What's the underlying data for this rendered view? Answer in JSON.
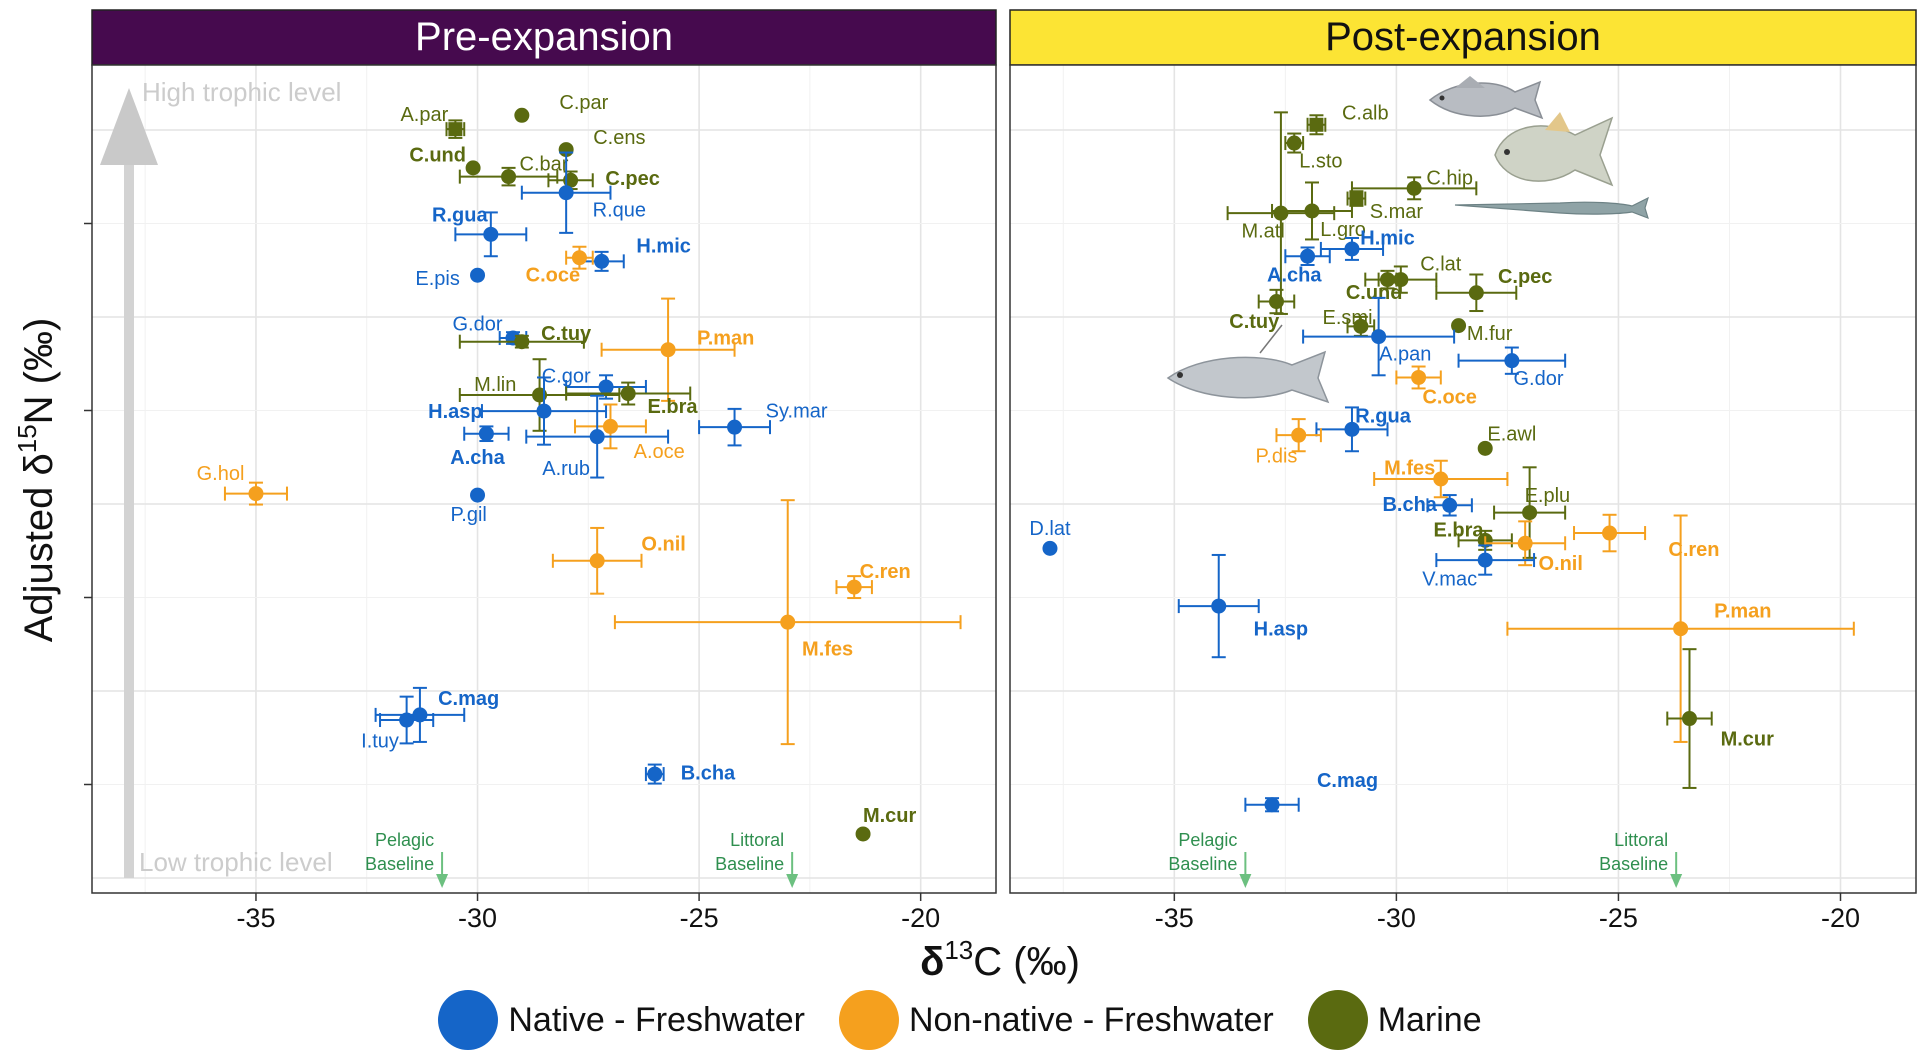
{
  "colors": {
    "native": "#1565c8",
    "nonnative": "#f5a01e",
    "marine": "#5a6a10",
    "pre_strip": "#460a4e",
    "post_strip": "#fce434",
    "baseline": "#6cc080"
  },
  "legend": [
    {
      "key": "native",
      "label": "Native - Freshwater"
    },
    {
      "key": "nonnative",
      "label": "Non-native - Freshwater"
    },
    {
      "key": "marine",
      "label": "Marine"
    }
  ],
  "axes": {
    "xlabel_prefix": "δ",
    "xlabel_sup": "13",
    "xlabel_suffix": "C (‰)",
    "ylabel_prefix": "Adjusted δ",
    "ylabel_sup": "15",
    "ylabel_suffix": "N (‰)",
    "x_ticks": [
      -35,
      -30,
      -25,
      -20
    ]
  },
  "annotations": {
    "high_trophic": "High trophic level",
    "low_trophic": "Low trophic level",
    "pelagic": "Pelagic",
    "littoral": "Littoral",
    "baseline": "Baseline"
  },
  "chart_data": [
    {
      "type": "scatter",
      "title": "Pre-expansion",
      "xlim": [
        -38.7,
        -18.3
      ],
      "ylim": [
        0,
        100
      ],
      "xlabel": "δ13C (‰)",
      "ylabel": "Adjusted δ15N (‰)",
      "baselines": [
        {
          "label": "Pelagic Baseline",
          "x": -30.8
        },
        {
          "label": "Littoral Baseline",
          "x": -22.9
        }
      ],
      "points": [
        {
          "label": "A.par",
          "g": "marine",
          "x": -30.5,
          "y": 91.9,
          "xe": 0.2,
          "ye": 1.2,
          "lx": -31.2,
          "ly": 94,
          "bold": false,
          "sq": true
        },
        {
          "label": "C.par",
          "g": "marine",
          "x": -29.0,
          "y": 93.8,
          "xe": 0,
          "ye": 0,
          "lx": -27.6,
          "ly": 95.6,
          "bold": false
        },
        {
          "label": "C.ens",
          "g": "marine",
          "x": -28.0,
          "y": 89.1,
          "xe": 0,
          "ye": 0,
          "lx": -26.8,
          "ly": 90.8,
          "bold": false
        },
        {
          "label": "C.und",
          "g": "marine",
          "x": -30.1,
          "y": 86.6,
          "xe": 0,
          "ye": 0,
          "lx": -30.9,
          "ly": 88.4,
          "bold": true
        },
        {
          "label": "C.bar",
          "g": "marine",
          "x": -29.3,
          "y": 85.4,
          "xe": 1.1,
          "ye": 1.2,
          "lx": -28.5,
          "ly": 87.2,
          "bold": false
        },
        {
          "label": "C.pec",
          "g": "marine",
          "x": -27.9,
          "y": 84.9,
          "xe": 0.5,
          "ye": 1.2,
          "lx": -26.5,
          "ly": 85.2,
          "bold": true
        },
        {
          "label": "R.que",
          "g": "native",
          "x": -28.0,
          "y": 83.2,
          "xe": 1.0,
          "ye": 5.5,
          "lx": -26.8,
          "ly": 80.9,
          "bold": false
        },
        {
          "label": "R.gua",
          "g": "native",
          "x": -29.7,
          "y": 77.5,
          "xe": 0.8,
          "ye": 3.0,
          "lx": -30.4,
          "ly": 80.2,
          "bold": true
        },
        {
          "label": "H.mic",
          "g": "native",
          "x": -27.2,
          "y": 73.8,
          "xe": 0.5,
          "ye": 1.3,
          "lx": -25.8,
          "ly": 76.0,
          "bold": true
        },
        {
          "label": "C.oce",
          "g": "nonnative",
          "x": -27.7,
          "y": 74.3,
          "xe": 0.3,
          "ye": 1.5,
          "lx": -28.3,
          "ly": 72.0,
          "bold": true
        },
        {
          "label": "E.pis",
          "g": "native",
          "x": -30.0,
          "y": 71.9,
          "xe": 0,
          "ye": 0,
          "lx": -30.9,
          "ly": 71.5,
          "bold": false
        },
        {
          "label": "G.dor",
          "g": "native",
          "x": -29.2,
          "y": 63.3,
          "xe": 0.3,
          "ye": 0.8,
          "lx": -30.0,
          "ly": 65.3,
          "bold": false
        },
        {
          "label": "C.tuy",
          "g": "marine",
          "x": -29.0,
          "y": 62.8,
          "xe": 1.4,
          "ye": 0.8,
          "lx": -28.0,
          "ly": 64.0,
          "bold": true
        },
        {
          "label": "P.man",
          "g": "nonnative",
          "x": -25.7,
          "y": 61.7,
          "xe": 1.5,
          "ye": 7.0,
          "lx": -24.4,
          "ly": 63.4,
          "bold": true
        },
        {
          "label": "C.gor",
          "g": "native",
          "x": -27.1,
          "y": 56.6,
          "xe": 0.9,
          "ye": 1.6,
          "lx": -28.0,
          "ly": 58.2,
          "bold": false
        },
        {
          "label": "M.lin",
          "g": "marine",
          "x": -28.6,
          "y": 55.5,
          "xe": 1.8,
          "ye": 4.9,
          "lx": -29.6,
          "ly": 57.0,
          "bold": false
        },
        {
          "label": "E.bra",
          "g": "marine",
          "x": -26.6,
          "y": 55.7,
          "xe": 1.4,
          "ye": 1.5,
          "lx": -25.6,
          "ly": 54.0,
          "bold": true
        },
        {
          "label": "H.asp",
          "g": "native",
          "x": -28.5,
          "y": 53.3,
          "xe": 1.4,
          "ye": 4.6,
          "lx": -30.5,
          "ly": 53.3,
          "bold": true
        },
        {
          "label": "Sy.mar",
          "g": "native",
          "x": -24.2,
          "y": 51.1,
          "xe": 0.8,
          "ye": 2.5,
          "lx": -22.8,
          "ly": 53.4,
          "bold": false
        },
        {
          "label": "A.cha",
          "g": "native",
          "x": -29.8,
          "y": 50.2,
          "xe": 0.5,
          "ye": 1.0,
          "lx": -30.0,
          "ly": 47.0,
          "bold": true
        },
        {
          "label": "A.oce",
          "g": "nonnative",
          "x": -27.0,
          "y": 51.2,
          "xe": 0.8,
          "ye": 3.0,
          "lx": -25.9,
          "ly": 47.8,
          "bold": false
        },
        {
          "label": "A.rub",
          "g": "native",
          "x": -27.3,
          "y": 49.8,
          "xe": 1.6,
          "ye": 5.6,
          "lx": -28.0,
          "ly": 45.5,
          "bold": false
        },
        {
          "label": "G.hol",
          "g": "nonnative",
          "x": -35.0,
          "y": 42.0,
          "xe": 0.7,
          "ye": 1.5,
          "lx": -35.8,
          "ly": 44.8,
          "bold": false
        },
        {
          "label": "P.gil",
          "g": "native",
          "x": -30.0,
          "y": 41.8,
          "xe": 0,
          "ye": 0,
          "lx": -30.2,
          "ly": 39.2,
          "bold": false
        },
        {
          "label": "O.nil",
          "g": "nonnative",
          "x": -27.3,
          "y": 32.8,
          "xe": 1.0,
          "ye": 4.5,
          "lx": -25.8,
          "ly": 35.2,
          "bold": true
        },
        {
          "label": "C.ren",
          "g": "nonnative",
          "x": -21.5,
          "y": 29.2,
          "xe": 0.4,
          "ye": 1.5,
          "lx": -20.8,
          "ly": 31.4,
          "bold": true
        },
        {
          "label": "M.fes",
          "g": "nonnative",
          "x": -23.0,
          "y": 24.4,
          "xe": 3.9,
          "ye": 16.7,
          "lx": -22.1,
          "ly": 20.8,
          "bold": true
        },
        {
          "label": "C.mag",
          "g": "native",
          "x": -31.3,
          "y": 11.7,
          "xe": 1.0,
          "ye": 3.7,
          "lx": -30.2,
          "ly": 14.0,
          "bold": true
        },
        {
          "label": "I.tuy",
          "g": "native",
          "x": -31.6,
          "y": 11.0,
          "xe": 0.6,
          "ye": 3.2,
          "lx": -32.2,
          "ly": 8.2,
          "bold": false
        },
        {
          "label": "B.cha",
          "g": "native",
          "x": -26.0,
          "y": 3.6,
          "xe": 0.2,
          "ye": 1.3,
          "lx": -24.8,
          "ly": 3.8,
          "bold": true
        },
        {
          "label": "M.cur",
          "g": "marine",
          "x": -21.3,
          "y": -4.6,
          "xe": 0,
          "ye": 0,
          "lx": -20.7,
          "ly": -2.0,
          "bold": true
        }
      ]
    },
    {
      "type": "scatter",
      "title": "Post-expansion",
      "xlim": [
        -38.7,
        -18.3
      ],
      "ylim": [
        0,
        100
      ],
      "xlabel": "δ13C (‰)",
      "ylabel": "Adjusted δ15N (‰)",
      "baselines": [
        {
          "label": "Pelagic Baseline",
          "x": -33.4
        },
        {
          "label": "Littoral Baseline",
          "x": -23.7
        }
      ],
      "points": [
        {
          "label": "C.alb",
          "g": "marine",
          "x": -31.8,
          "y": 92.5,
          "xe": 0.2,
          "ye": 1.3,
          "lx": -30.7,
          "ly": 94.2,
          "bold": false,
          "sq": true
        },
        {
          "label": "L.sto",
          "g": "marine",
          "x": -32.3,
          "y": 90.0,
          "xe": 0.2,
          "ye": 1.3,
          "lx": -31.7,
          "ly": 87.6,
          "bold": false
        },
        {
          "label": "C.hip",
          "g": "marine",
          "x": -29.6,
          "y": 83.8,
          "xe": 1.4,
          "ye": 1.5,
          "lx": -28.8,
          "ly": 85.3,
          "bold": false
        },
        {
          "label": "S.mar",
          "g": "marine",
          "x": -30.9,
          "y": 82.4,
          "xe": 0.2,
          "ye": 1.0,
          "lx": -30.0,
          "ly": 80.7,
          "bold": false,
          "sq": true
        },
        {
          "label": "M.atl",
          "g": "marine",
          "x": -32.6,
          "y": 80.4,
          "xe": 1.2,
          "ye": 13.8,
          "lx": -33.0,
          "ly": 78.0,
          "bold": false
        },
        {
          "label": "L.gro",
          "g": "marine",
          "x": -31.9,
          "y": 80.7,
          "xe": 0.9,
          "ye": 3.9,
          "lx": -31.2,
          "ly": 78.2,
          "bold": false
        },
        {
          "label": "H.mic",
          "g": "native",
          "x": -31.0,
          "y": 75.5,
          "xe": 0.7,
          "ye": 1.5,
          "lx": -30.2,
          "ly": 77.1,
          "bold": true
        },
        {
          "label": "A.cha",
          "g": "native",
          "x": -32.0,
          "y": 74.5,
          "xe": 0.5,
          "ye": 1.2,
          "lx": -32.3,
          "ly": 72.0,
          "bold": true
        },
        {
          "label": "C.lat",
          "g": "marine",
          "x": -29.9,
          "y": 71.3,
          "xe": 0.8,
          "ye": 1.8,
          "lx": -29.0,
          "ly": 73.5,
          "bold": false
        },
        {
          "label": "C.und",
          "g": "marine",
          "x": -30.2,
          "y": 71.3,
          "xe": 0.2,
          "ye": 1.2,
          "lx": -30.5,
          "ly": 69.6,
          "bold": true
        },
        {
          "label": "C.pec",
          "g": "marine",
          "x": -28.2,
          "y": 69.5,
          "xe": 0.9,
          "ye": 2.5,
          "lx": -27.1,
          "ly": 71.8,
          "bold": true
        },
        {
          "label": "C.tuy",
          "g": "marine",
          "x": -32.7,
          "y": 68.3,
          "xe": 0.4,
          "ye": 1.6,
          "lx": -33.2,
          "ly": 65.6,
          "bold": true
        },
        {
          "label": "E.smi",
          "g": "marine",
          "x": -30.8,
          "y": 64.9,
          "xe": 0.3,
          "ye": 1.3,
          "lx": -31.1,
          "ly": 66.2,
          "bold": false
        },
        {
          "label": "M.fur",
          "g": "marine",
          "x": -28.6,
          "y": 65.0,
          "xe": 0,
          "ye": 0,
          "lx": -27.9,
          "ly": 64.0,
          "bold": false
        },
        {
          "label": "A.pan",
          "g": "native",
          "x": -30.4,
          "y": 63.5,
          "xe": 1.7,
          "ye": 5.3,
          "lx": -29.8,
          "ly": 61.2,
          "bold": false
        },
        {
          "label": "G.dor",
          "g": "native",
          "x": -27.4,
          "y": 60.2,
          "xe": 1.2,
          "ye": 1.8,
          "lx": -26.8,
          "ly": 57.8,
          "bold": false
        },
        {
          "label": "C.oce",
          "g": "nonnative",
          "x": -29.5,
          "y": 57.9,
          "xe": 0.5,
          "ye": 1.5,
          "lx": -28.8,
          "ly": 55.3,
          "bold": true
        },
        {
          "label": "R.gua",
          "g": "native",
          "x": -31.0,
          "y": 50.8,
          "xe": 0.8,
          "ye": 3.0,
          "lx": -30.3,
          "ly": 52.7,
          "bold": true
        },
        {
          "label": "P.dis",
          "g": "nonnative",
          "x": -32.2,
          "y": 50.0,
          "xe": 0.5,
          "ye": 2.2,
          "lx": -32.7,
          "ly": 47.2,
          "bold": false
        },
        {
          "label": "E.awl",
          "g": "marine",
          "x": -28.0,
          "y": 48.2,
          "xe": 0,
          "ye": 0,
          "lx": -27.4,
          "ly": 50.2,
          "bold": false
        },
        {
          "label": "M.fes",
          "g": "nonnative",
          "x": -29.0,
          "y": 44.0,
          "xe": 1.5,
          "ye": 2.5,
          "lx": -29.7,
          "ly": 45.6,
          "bold": true
        },
        {
          "label": "E.plu",
          "g": "marine",
          "x": -27.0,
          "y": 39.4,
          "xe": 0.8,
          "ye": 6.2,
          "lx": -26.6,
          "ly": 41.8,
          "bold": false
        },
        {
          "label": "B.cha",
          "g": "native",
          "x": -28.8,
          "y": 40.4,
          "xe": 0.5,
          "ye": 1.4,
          "lx": -29.7,
          "ly": 40.6,
          "bold": true
        },
        {
          "label": "C.ren",
          "g": "nonnative",
          "x": -25.2,
          "y": 36.6,
          "xe": 0.8,
          "ye": 2.5,
          "lx": -23.3,
          "ly": 34.4,
          "bold": true
        },
        {
          "label": "E.bra",
          "g": "marine",
          "x": -28.0,
          "y": 35.6,
          "xe": 0.6,
          "ye": 1.3,
          "lx": -28.6,
          "ly": 37.1,
          "bold": true
        },
        {
          "label": "O.nil",
          "g": "nonnative",
          "x": -27.1,
          "y": 35.2,
          "xe": 0.9,
          "ye": 3.0,
          "lx": -26.3,
          "ly": 32.5,
          "bold": true
        },
        {
          "label": "V.mac",
          "g": "native",
          "x": -28.0,
          "y": 32.9,
          "xe": 1.1,
          "ye": 2.0,
          "lx": -28.8,
          "ly": 30.4,
          "bold": false
        },
        {
          "label": "D.lat",
          "g": "native",
          "x": -37.8,
          "y": 34.5,
          "xe": 0,
          "ye": 0,
          "lx": -37.8,
          "ly": 37.3,
          "bold": false
        },
        {
          "label": "H.asp",
          "g": "native",
          "x": -34.0,
          "y": 26.6,
          "xe": 0.9,
          "ye": 7.0,
          "lx": -32.6,
          "ly": 23.5,
          "bold": true
        },
        {
          "label": "P.man",
          "g": "nonnative",
          "x": -23.6,
          "y": 23.5,
          "xe": 3.9,
          "ye": 15.5,
          "lx": -22.2,
          "ly": 26.0,
          "bold": true
        },
        {
          "label": "M.cur",
          "g": "marine",
          "x": -23.4,
          "y": 11.2,
          "xe": 0.5,
          "ye": 9.5,
          "lx": -22.1,
          "ly": 8.5,
          "bold": true
        },
        {
          "label": "C.mag",
          "g": "native",
          "x": -32.8,
          "y": -0.6,
          "xe": 0.6,
          "ye": 0.9,
          "lx": -31.1,
          "ly": 2.8,
          "bold": true
        }
      ]
    }
  ]
}
